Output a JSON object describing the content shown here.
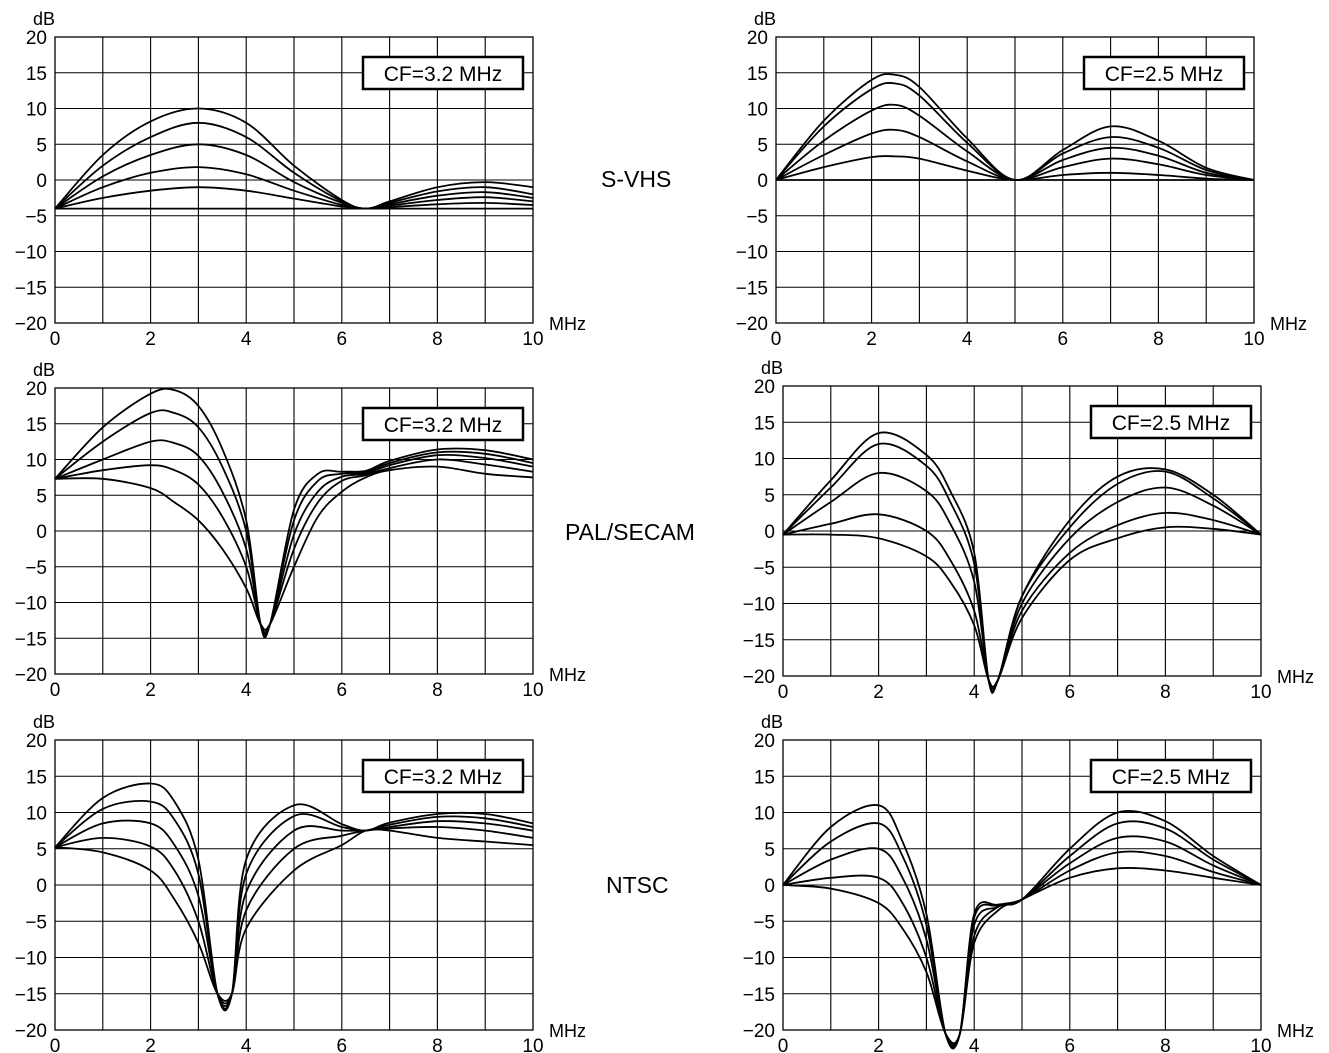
{
  "row_labels": [
    "S-VHS",
    "PAL/SECAM",
    "NTSC"
  ],
  "chart_data": [
    {
      "type": "line",
      "id": "svhs-cf32",
      "row": "S-VHS",
      "annotation": "CF=3.2 MHz",
      "ylabel": "dB",
      "xlabel": "MHz",
      "xlim": [
        0,
        10
      ],
      "ylim": [
        -20,
        20
      ],
      "xticks": [
        0,
        2,
        4,
        6,
        8,
        10
      ],
      "yticks": [
        20,
        15,
        10,
        5,
        0,
        -5,
        -10,
        -15,
        -20
      ],
      "grid": true,
      "x": [
        0,
        1,
        2,
        3,
        4,
        5,
        6,
        6.5,
        7,
        8,
        9,
        10
      ],
      "series": [
        {
          "values": [
            -4,
            -4,
            -4,
            -4,
            -4,
            -4,
            -4,
            -4,
            -4,
            -4,
            -4,
            -4
          ]
        },
        {
          "values": [
            -4,
            -2.5,
            -1.5,
            -1,
            -1.5,
            -2.6,
            -3.7,
            -4,
            -3.8,
            -3.4,
            -3.2,
            -3.5
          ]
        },
        {
          "values": [
            -4,
            -1,
            1,
            1.8,
            0.8,
            -1.5,
            -3.5,
            -4,
            -3.6,
            -2.8,
            -2.4,
            -3
          ]
        },
        {
          "values": [
            -4,
            0.5,
            3.5,
            5,
            3.5,
            -0.3,
            -3.2,
            -4,
            -3.4,
            -2.2,
            -1.7,
            -2.5
          ]
        },
        {
          "values": [
            -4,
            2,
            6,
            8,
            6,
            1,
            -3,
            -4,
            -3.2,
            -1.6,
            -1,
            -2
          ]
        },
        {
          "values": [
            -4,
            3.5,
            8.2,
            10,
            8,
            2,
            -2.8,
            -4,
            -3,
            -1,
            -0.3,
            -1
          ]
        }
      ]
    },
    {
      "type": "line",
      "id": "svhs-cf25",
      "row": "S-VHS",
      "annotation": "CF=2.5 MHz",
      "ylabel": "dB",
      "xlabel": "MHz",
      "xlim": [
        0,
        10
      ],
      "ylim": [
        -20,
        20
      ],
      "xticks": [
        0,
        2,
        4,
        6,
        8,
        10
      ],
      "yticks": [
        20,
        15,
        10,
        5,
        0,
        -5,
        -10,
        -15,
        -20
      ],
      "grid": true,
      "x": [
        0,
        1,
        2,
        2.5,
        3,
        4,
        5,
        6,
        7,
        8,
        9,
        10
      ],
      "series": [
        {
          "values": [
            0,
            0,
            0,
            0,
            0,
            0,
            0,
            0,
            0,
            0,
            0,
            0
          ]
        },
        {
          "values": [
            0,
            1.8,
            3.2,
            3.3,
            3,
            1.3,
            0,
            0.7,
            1,
            0.7,
            0.2,
            0
          ]
        },
        {
          "values": [
            0,
            3.5,
            6.5,
            7,
            6,
            2.6,
            0,
            1.8,
            3,
            2.2,
            0.7,
            0
          ]
        },
        {
          "values": [
            0,
            5.5,
            9.7,
            10.5,
            9,
            4,
            0,
            2.8,
            4.5,
            3.4,
            1,
            0
          ]
        },
        {
          "values": [
            0,
            7.5,
            12.7,
            13.5,
            11.8,
            5.2,
            0,
            3.7,
            6,
            4.5,
            1.4,
            0
          ]
        },
        {
          "values": [
            0,
            8.3,
            14,
            14.7,
            13,
            5.8,
            0,
            4.2,
            7.5,
            5.5,
            1.7,
            0
          ]
        }
      ]
    },
    {
      "type": "line",
      "id": "pal-cf32",
      "row": "PAL/SECAM",
      "annotation": "CF=3.2 MHz",
      "ylabel": "dB",
      "xlabel": "MHz",
      "xlim": [
        0,
        10
      ],
      "ylim": [
        -20,
        20
      ],
      "xticks": [
        0,
        2,
        4,
        6,
        8,
        10
      ],
      "yticks": [
        20,
        15,
        10,
        5,
        0,
        -5,
        -10,
        -15,
        -20
      ],
      "grid": true,
      "x": [
        0,
        1,
        2,
        2.5,
        3,
        3.5,
        4,
        4.3,
        4.5,
        5,
        5.5,
        6,
        6.5,
        7,
        8,
        9,
        10
      ],
      "series": [
        {
          "values": [
            7.3,
            7.3,
            6,
            4,
            1.5,
            -2.5,
            -8,
            -13,
            -13,
            -5,
            2,
            5.5,
            7.5,
            8.5,
            9,
            8,
            7.5
          ]
        },
        {
          "values": [
            7.3,
            8.5,
            9.2,
            8.5,
            6.5,
            2,
            -5,
            -13,
            -13,
            -2.5,
            4,
            7,
            7.8,
            8.8,
            10,
            9.3,
            8.3
          ]
        },
        {
          "values": [
            7.3,
            10,
            12.5,
            12.3,
            10.5,
            5.5,
            -2.5,
            -13,
            -13,
            -0.5,
            5.5,
            7.6,
            8,
            9.2,
            10.6,
            10.2,
            9
          ]
        },
        {
          "values": [
            7.3,
            12.5,
            16.5,
            16.5,
            14.5,
            9,
            0,
            -13,
            -13,
            1.5,
            7,
            8,
            8.2,
            9.5,
            11,
            10.8,
            9.5
          ]
        },
        {
          "values": [
            7.3,
            14.5,
            19.2,
            19.7,
            17.5,
            11.5,
            1.5,
            -13,
            -13,
            3,
            8,
            8.3,
            8.4,
            9.8,
            11.4,
            11.3,
            10
          ]
        }
      ]
    },
    {
      "type": "line",
      "id": "pal-cf25",
      "row": "PAL/SECAM",
      "annotation": "CF=2.5 MHz",
      "ylabel": "dB",
      "xlabel": "MHz",
      "xlim": [
        0,
        10
      ],
      "ylim": [
        -20,
        20
      ],
      "xticks": [
        0,
        2,
        4,
        6,
        8,
        10
      ],
      "yticks": [
        20,
        15,
        10,
        5,
        0,
        -5,
        -10,
        -15,
        -20
      ],
      "grid": true,
      "x": [
        0,
        1,
        2,
        3,
        3.5,
        4,
        4.3,
        4.5,
        5,
        6,
        7,
        8,
        9,
        10
      ],
      "series": [
        {
          "values": [
            -0.5,
            -0.5,
            -1,
            -3.5,
            -7,
            -13,
            -20.5,
            -20.5,
            -12,
            -4,
            -1,
            0.5,
            0.3,
            -0.5
          ]
        },
        {
          "values": [
            -0.5,
            1,
            2.3,
            0,
            -4,
            -11,
            -20.5,
            -20.5,
            -11,
            -3,
            0.8,
            2.5,
            1.5,
            -0.5
          ]
        },
        {
          "values": [
            -0.5,
            4,
            8,
            5.5,
            1,
            -7,
            -20.5,
            -20.5,
            -10,
            -1,
            4,
            6,
            3.5,
            -0.5
          ]
        },
        {
          "values": [
            -0.5,
            6,
            12,
            9,
            4,
            -4.5,
            -20.5,
            -20.5,
            -9,
            0.5,
            6.5,
            8.2,
            4.5,
            -0.5
          ]
        },
        {
          "values": [
            -0.5,
            7,
            13.5,
            10.5,
            5.5,
            -3,
            -20.5,
            -20.5,
            -9,
            1.5,
            7.5,
            8.5,
            5,
            -0.5
          ]
        }
      ]
    },
    {
      "type": "line",
      "id": "ntsc-cf32",
      "row": "NTSC",
      "annotation": "CF=3.2 MHz",
      "ylabel": "dB",
      "xlabel": "MHz",
      "xlim": [
        0,
        10
      ],
      "ylim": [
        -20,
        20
      ],
      "xticks": [
        0,
        2,
        4,
        6,
        8,
        10
      ],
      "yticks": [
        20,
        15,
        10,
        5,
        0,
        -5,
        -10,
        -15,
        -20
      ],
      "grid": true,
      "x": [
        0,
        1,
        2,
        2.5,
        3,
        3.4,
        3.7,
        4,
        5,
        6,
        6.5,
        7,
        8,
        9,
        10
      ],
      "series": [
        {
          "values": [
            5.2,
            4.5,
            2,
            -2,
            -8,
            -15,
            -15,
            -6,
            2,
            5.5,
            7.5,
            7.5,
            6.5,
            6,
            5.5
          ]
        },
        {
          "values": [
            5.2,
            6.5,
            5.3,
            2,
            -5,
            -15,
            -15,
            -3.5,
            5,
            6.8,
            7.5,
            7.8,
            8,
            7.5,
            6.5
          ]
        },
        {
          "values": [
            5.2,
            8.5,
            8.5,
            5.5,
            -1.5,
            -15,
            -15,
            -1,
            7.5,
            7.5,
            7.5,
            8,
            8.8,
            8.5,
            7.5
          ]
        },
        {
          "values": [
            5.2,
            10.5,
            11.5,
            9,
            1.5,
            -15,
            -15,
            1.5,
            9.5,
            8,
            7.5,
            8.3,
            9.4,
            9.2,
            8
          ]
        },
        {
          "values": [
            5.2,
            12,
            14,
            11.5,
            3.5,
            -15,
            -15,
            3.5,
            11,
            8.4,
            7.5,
            8.6,
            9.8,
            9.8,
            8.5
          ]
        }
      ]
    },
    {
      "type": "line",
      "id": "ntsc-cf25",
      "row": "NTSC",
      "annotation": "CF=2.5 MHz",
      "ylabel": "dB",
      "xlabel": "MHz",
      "xlim": [
        0,
        10
      ],
      "ylim": [
        -20,
        20
      ],
      "xticks": [
        0,
        2,
        4,
        6,
        8,
        10
      ],
      "yticks": [
        20,
        15,
        10,
        5,
        0,
        -5,
        -10,
        -15,
        -20
      ],
      "grid": true,
      "x": [
        0,
        1,
        2,
        2.5,
        3,
        3.4,
        3.7,
        4,
        4.5,
        5,
        6,
        7,
        8,
        9,
        10
      ],
      "series": [
        {
          "values": [
            0,
            -0.5,
            -2.5,
            -6,
            -12,
            -20.5,
            -20.5,
            -8,
            -3.5,
            -2,
            1,
            2.3,
            2,
            1,
            0
          ]
        },
        {
          "values": [
            0,
            1,
            1,
            -2.5,
            -10,
            -20.5,
            -20.5,
            -7,
            -3,
            -2,
            2,
            4.5,
            4,
            1.8,
            0
          ]
        },
        {
          "values": [
            0,
            3.5,
            5,
            1,
            -7.5,
            -20.5,
            -20.5,
            -5.5,
            -3,
            -2,
            3,
            6.5,
            6,
            2.7,
            0
          ]
        },
        {
          "values": [
            0,
            6,
            8.5,
            4,
            -5.5,
            -20.5,
            -20.5,
            -4.5,
            -2.8,
            -2,
            4,
            8.5,
            7.8,
            3.5,
            0
          ]
        },
        {
          "values": [
            0,
            8,
            11,
            6,
            -4,
            -20.5,
            -20.5,
            -4,
            -2.7,
            -2,
            5,
            10,
            8.8,
            4,
            0
          ]
        }
      ]
    }
  ]
}
